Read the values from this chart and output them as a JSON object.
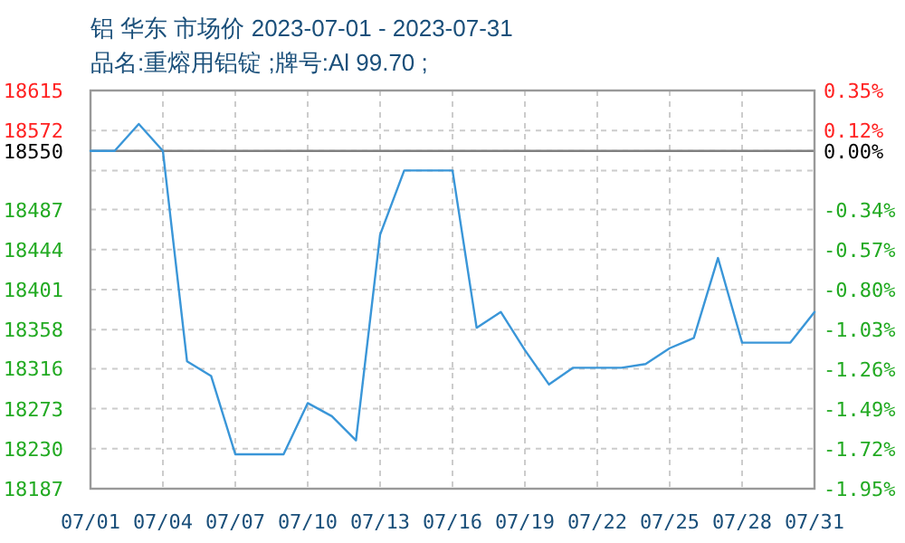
{
  "chart_data": {
    "type": "line",
    "title": "铝 华东 市场价 2023-07-01 - 2023-07-31",
    "subtitle": "品名:重熔用铝锭 ;牌号:Al 99.70 ;",
    "x": [
      "2023-07-01",
      "2023-07-02",
      "2023-07-03",
      "2023-07-04",
      "2023-07-05",
      "2023-07-06",
      "2023-07-07",
      "2023-07-08",
      "2023-07-09",
      "2023-07-10",
      "2023-07-11",
      "2023-07-12",
      "2023-07-13",
      "2023-07-14",
      "2023-07-15",
      "2023-07-16",
      "2023-07-17",
      "2023-07-18",
      "2023-07-19",
      "2023-07-20",
      "2023-07-21",
      "2023-07-22",
      "2023-07-23",
      "2023-07-24",
      "2023-07-25",
      "2023-07-26",
      "2023-07-27",
      "2023-07-28",
      "2023-07-29",
      "2023-07-30",
      "2023-07-31"
    ],
    "series": [
      {
        "color": "#3a96d8",
        "values": [
          18550,
          18550,
          18579,
          18550,
          18324,
          18308,
          18224,
          18224,
          18224,
          18279,
          18265,
          18239,
          18460,
          18529,
          18529,
          18529,
          18360,
          18377,
          18336,
          18299,
          18317,
          18317,
          18317,
          18321,
          18338,
          18349,
          18435,
          18344,
          18344,
          18344,
          18377
        ]
      }
    ],
    "xlim": [
      "2023-07-01",
      "2023-07-31"
    ],
    "xticks": [
      {
        "value": "2023-07-01",
        "label": "07/01"
      },
      {
        "value": "2023-07-04",
        "label": "07/04"
      },
      {
        "value": "2023-07-07",
        "label": "07/07"
      },
      {
        "value": "2023-07-10",
        "label": "07/10"
      },
      {
        "value": "2023-07-13",
        "label": "07/13"
      },
      {
        "value": "2023-07-16",
        "label": "07/16"
      },
      {
        "value": "2023-07-19",
        "label": "07/19"
      },
      {
        "value": "2023-07-22",
        "label": "07/22"
      },
      {
        "value": "2023-07-25",
        "label": "07/25"
      },
      {
        "value": "2023-07-28",
        "label": "07/28"
      },
      {
        "value": "2023-07-31",
        "label": "07/31"
      }
    ],
    "ylim": [
      18187,
      18615
    ],
    "yticks": [
      18615,
      18572,
      18550,
      {
        "value": 18529,
        "label": null
      },
      18487,
      18444,
      18401,
      18358,
      18316,
      18273,
      18230,
      18187
    ],
    "y2lim": [
      -1.95,
      0.35
    ],
    "y2ticks": [
      {
        "value": 0.35,
        "label": "0.35%"
      },
      {
        "value": 0.12,
        "label": "0.12%"
      },
      {
        "value": 0,
        "label": "0.00%"
      },
      {
        "value": -0.34,
        "label": "-0.34%"
      },
      {
        "value": -0.57,
        "label": "-0.57%"
      },
      {
        "value": -0.8,
        "label": "-0.80%"
      },
      {
        "value": -1.03,
        "label": "-1.03%"
      },
      {
        "value": -1.26,
        "label": "-1.26%"
      },
      {
        "value": -1.49,
        "label": "-1.49%"
      },
      {
        "value": -1.72,
        "label": "-1.72%"
      },
      {
        "value": -1.95,
        "label": "-1.95%"
      }
    ],
    "ref_lines": [
      {
        "axis": "y",
        "value": 18550,
        "color": "#808080"
      }
    ],
    "grid": true,
    "line_style": "solid"
  }
}
